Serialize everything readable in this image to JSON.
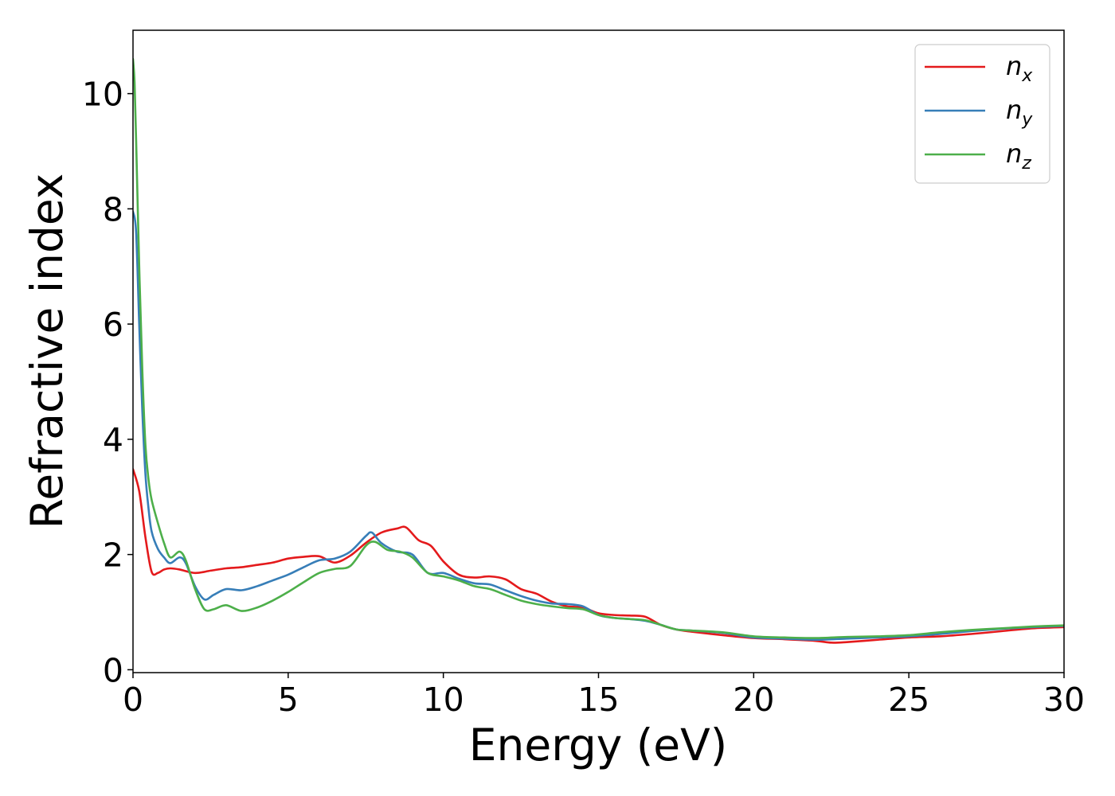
{
  "chart_data": {
    "type": "line",
    "title": "",
    "xlabel": "Energy (eV)",
    "ylabel": "Refractive index",
    "xlim": [
      0,
      30
    ],
    "ylim": [
      -0.05,
      11.1
    ],
    "xticks": [
      0,
      5,
      10,
      15,
      20,
      25,
      30
    ],
    "yticks": [
      0,
      2,
      4,
      6,
      8,
      10
    ],
    "grid": false,
    "legend_position": "top-right",
    "series": [
      {
        "name": "n",
        "subscript": "x",
        "color": "#e41a1c",
        "x": [
          0,
          0.2,
          0.4,
          0.6,
          0.8,
          1.0,
          1.2,
          1.5,
          2.0,
          2.5,
          3.0,
          3.5,
          4.0,
          4.5,
          5.0,
          5.5,
          6.0,
          6.5,
          7.0,
          7.5,
          8.0,
          8.5,
          8.8,
          9.2,
          9.6,
          10.0,
          10.5,
          11.0,
          11.5,
          12.0,
          12.5,
          13.0,
          13.5,
          14.0,
          14.5,
          15.0,
          15.5,
          16.0,
          16.5,
          17.0,
          17.5,
          18.0,
          19.0,
          20.0,
          21.0,
          22.0,
          22.5,
          23.0,
          24.0,
          25.0,
          26.0,
          27.0,
          28.0,
          29.0,
          30.0
        ],
        "values": [
          3.48,
          3.1,
          2.3,
          1.7,
          1.68,
          1.74,
          1.76,
          1.74,
          1.68,
          1.72,
          1.76,
          1.78,
          1.82,
          1.86,
          1.93,
          1.96,
          1.97,
          1.86,
          1.98,
          2.2,
          2.38,
          2.45,
          2.47,
          2.25,
          2.15,
          1.88,
          1.65,
          1.6,
          1.62,
          1.57,
          1.4,
          1.32,
          1.18,
          1.1,
          1.08,
          0.98,
          0.95,
          0.94,
          0.92,
          0.78,
          0.7,
          0.66,
          0.6,
          0.55,
          0.53,
          0.5,
          0.47,
          0.48,
          0.52,
          0.56,
          0.58,
          0.62,
          0.67,
          0.72,
          0.74
        ]
      },
      {
        "name": "n",
        "subscript": "y",
        "color": "#377eb8",
        "x": [
          0,
          0.1,
          0.2,
          0.3,
          0.4,
          0.5,
          0.6,
          0.8,
          1.0,
          1.2,
          1.5,
          1.7,
          2.0,
          2.3,
          2.6,
          3.0,
          3.5,
          4.0,
          4.5,
          5.0,
          5.5,
          6.0,
          6.5,
          7.0,
          7.5,
          7.7,
          8.0,
          8.5,
          9.0,
          9.5,
          10.0,
          10.5,
          11.0,
          11.5,
          12.0,
          12.5,
          13.0,
          13.5,
          14.0,
          14.5,
          15.0,
          15.5,
          16.0,
          16.5,
          17.0,
          17.5,
          18.0,
          19.0,
          20.0,
          21.0,
          22.0,
          23.0,
          24.0,
          25.0,
          26.0,
          27.0,
          28.0,
          29.0,
          30.0
        ],
        "values": [
          7.95,
          7.6,
          6.0,
          4.5,
          3.4,
          2.8,
          2.4,
          2.1,
          1.95,
          1.85,
          1.95,
          1.85,
          1.45,
          1.22,
          1.3,
          1.4,
          1.38,
          1.45,
          1.55,
          1.65,
          1.78,
          1.9,
          1.93,
          2.05,
          2.32,
          2.38,
          2.2,
          2.05,
          2.0,
          1.68,
          1.68,
          1.58,
          1.5,
          1.48,
          1.38,
          1.28,
          1.2,
          1.15,
          1.14,
          1.1,
          0.95,
          0.9,
          0.88,
          0.85,
          0.78,
          0.7,
          0.68,
          0.64,
          0.56,
          0.54,
          0.52,
          0.54,
          0.56,
          0.58,
          0.62,
          0.67,
          0.71,
          0.74,
          0.76
        ]
      },
      {
        "name": "n",
        "subscript": "z",
        "color": "#4daf4a",
        "x": [
          0,
          0.05,
          0.1,
          0.2,
          0.3,
          0.4,
          0.5,
          0.6,
          0.8,
          1.0,
          1.2,
          1.5,
          1.7,
          2.0,
          2.3,
          2.6,
          3.0,
          3.5,
          4.0,
          4.5,
          5.0,
          5.5,
          6.0,
          6.5,
          7.0,
          7.5,
          7.8,
          8.2,
          8.6,
          9.0,
          9.5,
          10.0,
          10.5,
          11.0,
          11.5,
          12.0,
          12.5,
          13.0,
          13.5,
          14.0,
          14.5,
          15.0,
          15.5,
          16.0,
          16.5,
          17.0,
          17.5,
          18.0,
          19.0,
          20.0,
          21.0,
          22.0,
          23.0,
          24.0,
          25.0,
          26.0,
          27.0,
          28.0,
          29.0,
          30.0
        ],
        "values": [
          10.6,
          10.2,
          9.2,
          7.0,
          5.2,
          3.9,
          3.3,
          2.95,
          2.55,
          2.2,
          1.95,
          2.05,
          1.9,
          1.4,
          1.05,
          1.05,
          1.12,
          1.02,
          1.08,
          1.2,
          1.35,
          1.52,
          1.68,
          1.75,
          1.8,
          2.15,
          2.22,
          2.08,
          2.05,
          1.95,
          1.68,
          1.62,
          1.55,
          1.45,
          1.4,
          1.3,
          1.2,
          1.14,
          1.1,
          1.07,
          1.05,
          0.95,
          0.9,
          0.88,
          0.86,
          0.78,
          0.7,
          0.68,
          0.65,
          0.58,
          0.56,
          0.55,
          0.57,
          0.58,
          0.6,
          0.65,
          0.69,
          0.72,
          0.75,
          0.77
        ]
      }
    ]
  }
}
